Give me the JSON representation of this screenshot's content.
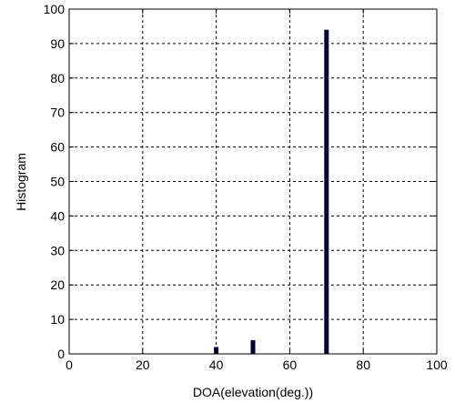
{
  "chart_data": {
    "type": "bar",
    "title": "",
    "xlabel": "DOA(elevation(deg.))",
    "ylabel": "Histogram",
    "xlim": [
      0,
      100
    ],
    "ylim": [
      0,
      100
    ],
    "xticks": [
      0,
      20,
      40,
      60,
      80,
      100
    ],
    "yticks": [
      0,
      10,
      20,
      30,
      40,
      50,
      60,
      70,
      80,
      90,
      100
    ],
    "grid": true,
    "bar_color": "#000033",
    "x": [
      40,
      50,
      70
    ],
    "values": [
      2,
      4,
      94
    ]
  }
}
